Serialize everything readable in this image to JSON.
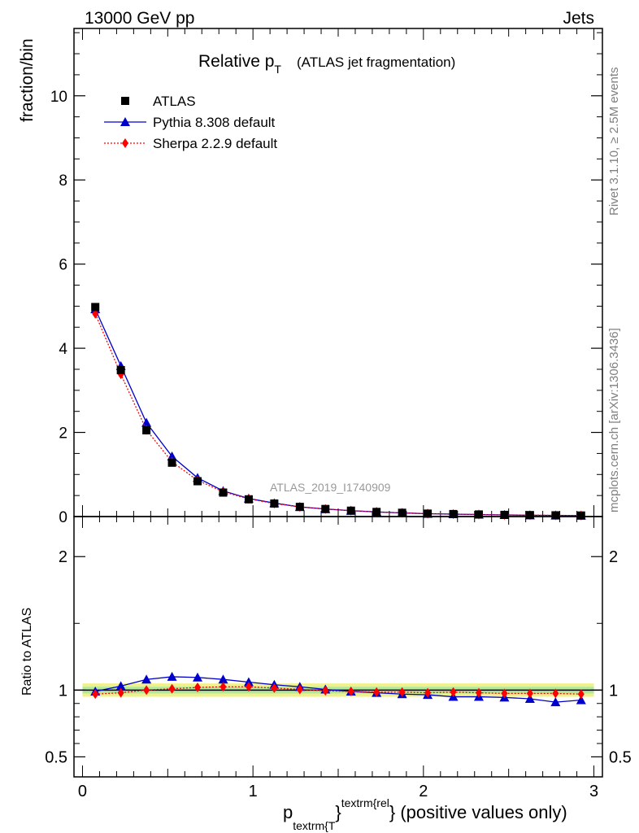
{
  "header": {
    "left": "13000 GeV pp",
    "right": "Jets"
  },
  "title": {
    "main": "Relative p",
    "sub": "T",
    "suffix": "(ATLAS jet fragmentation)"
  },
  "side_labels": {
    "rivet": "Rivet 3.1.10, ≥ 2.5M events",
    "mcplots": "mcplots.cern.ch [arXiv:1306.3436]"
  },
  "watermark": "ATLAS_2019_I1740909",
  "axis": {
    "y_main_label": "fraction/bin",
    "y_ratio_label": "Ratio to ATLAS",
    "x_label_p": "p",
    "x_label_sub": "textrm{T",
    "x_label_sup": "textrm{rel",
    "x_label_tail": "} (positive values only)"
  },
  "legend": [
    {
      "name": "ATLAS",
      "color": "#000000",
      "marker": "square"
    },
    {
      "name": "Pythia 8.308 default",
      "color": "#0000cc",
      "marker": "triangle"
    },
    {
      "name": "Sherpa 2.2.9 default",
      "color": "#ff0000",
      "marker": "diamond"
    }
  ],
  "chart_data": {
    "type": "line",
    "x": [
      0.075,
      0.225,
      0.375,
      0.525,
      0.675,
      0.825,
      0.975,
      1.125,
      1.275,
      1.425,
      1.575,
      1.725,
      1.875,
      2.025,
      2.175,
      2.325,
      2.475,
      2.625,
      2.775,
      2.925
    ],
    "x_ticks": [
      "0",
      "1",
      "2",
      "3"
    ],
    "xlim": [
      -0.05,
      3.05
    ],
    "main": {
      "ylim": [
        0,
        11.6
      ],
      "y_ticks": [
        "0",
        "2",
        "4",
        "6",
        "8",
        "10"
      ],
      "series": [
        {
          "name": "ATLAS",
          "values": [
            4.98,
            3.48,
            2.05,
            1.28,
            0.84,
            0.57,
            0.41,
            0.31,
            0.23,
            0.18,
            0.14,
            0.11,
            0.09,
            0.07,
            0.06,
            0.05,
            0.04,
            0.035,
            0.03,
            0.025
          ]
        },
        {
          "name": "Pythia 8.308 default",
          "values": [
            4.93,
            3.58,
            2.23,
            1.43,
            0.92,
            0.61,
            0.43,
            0.32,
            0.23,
            0.18,
            0.14,
            0.11,
            0.087,
            0.068,
            0.057,
            0.048,
            0.038,
            0.032,
            0.027,
            0.023
          ]
        },
        {
          "name": "Sherpa 2.2.9 default",
          "values": [
            4.82,
            3.38,
            2.06,
            1.3,
            0.86,
            0.59,
            0.42,
            0.31,
            0.23,
            0.18,
            0.14,
            0.11,
            0.088,
            0.069,
            0.059,
            0.049,
            0.039,
            0.034,
            0.029,
            0.024
          ]
        }
      ]
    },
    "ratio": {
      "ylim": [
        0.35,
        2.3
      ],
      "y_ticks": [
        "0.5",
        "1",
        "2"
      ],
      "series": [
        {
          "name": "ATLAS",
          "values": [
            1,
            1,
            1,
            1,
            1,
            1,
            1,
            1,
            1,
            1,
            1,
            1,
            1,
            1,
            1,
            1,
            1,
            1,
            1,
            1
          ]
        },
        {
          "name": "Pythia 8.308 default",
          "values": [
            0.99,
            1.03,
            1.08,
            1.1,
            1.095,
            1.08,
            1.06,
            1.04,
            1.025,
            1.005,
            0.99,
            0.98,
            0.97,
            0.965,
            0.95,
            0.95,
            0.945,
            0.935,
            0.91,
            0.925
          ]
        },
        {
          "name": "Sherpa 2.2.9 default",
          "values": [
            0.97,
            0.98,
            1.0,
            1.01,
            1.02,
            1.025,
            1.025,
            1.015,
            1.005,
            0.995,
            0.99,
            0.985,
            0.985,
            0.98,
            0.985,
            0.98,
            0.975,
            0.975,
            0.975,
            0.97
          ]
        }
      ]
    }
  }
}
